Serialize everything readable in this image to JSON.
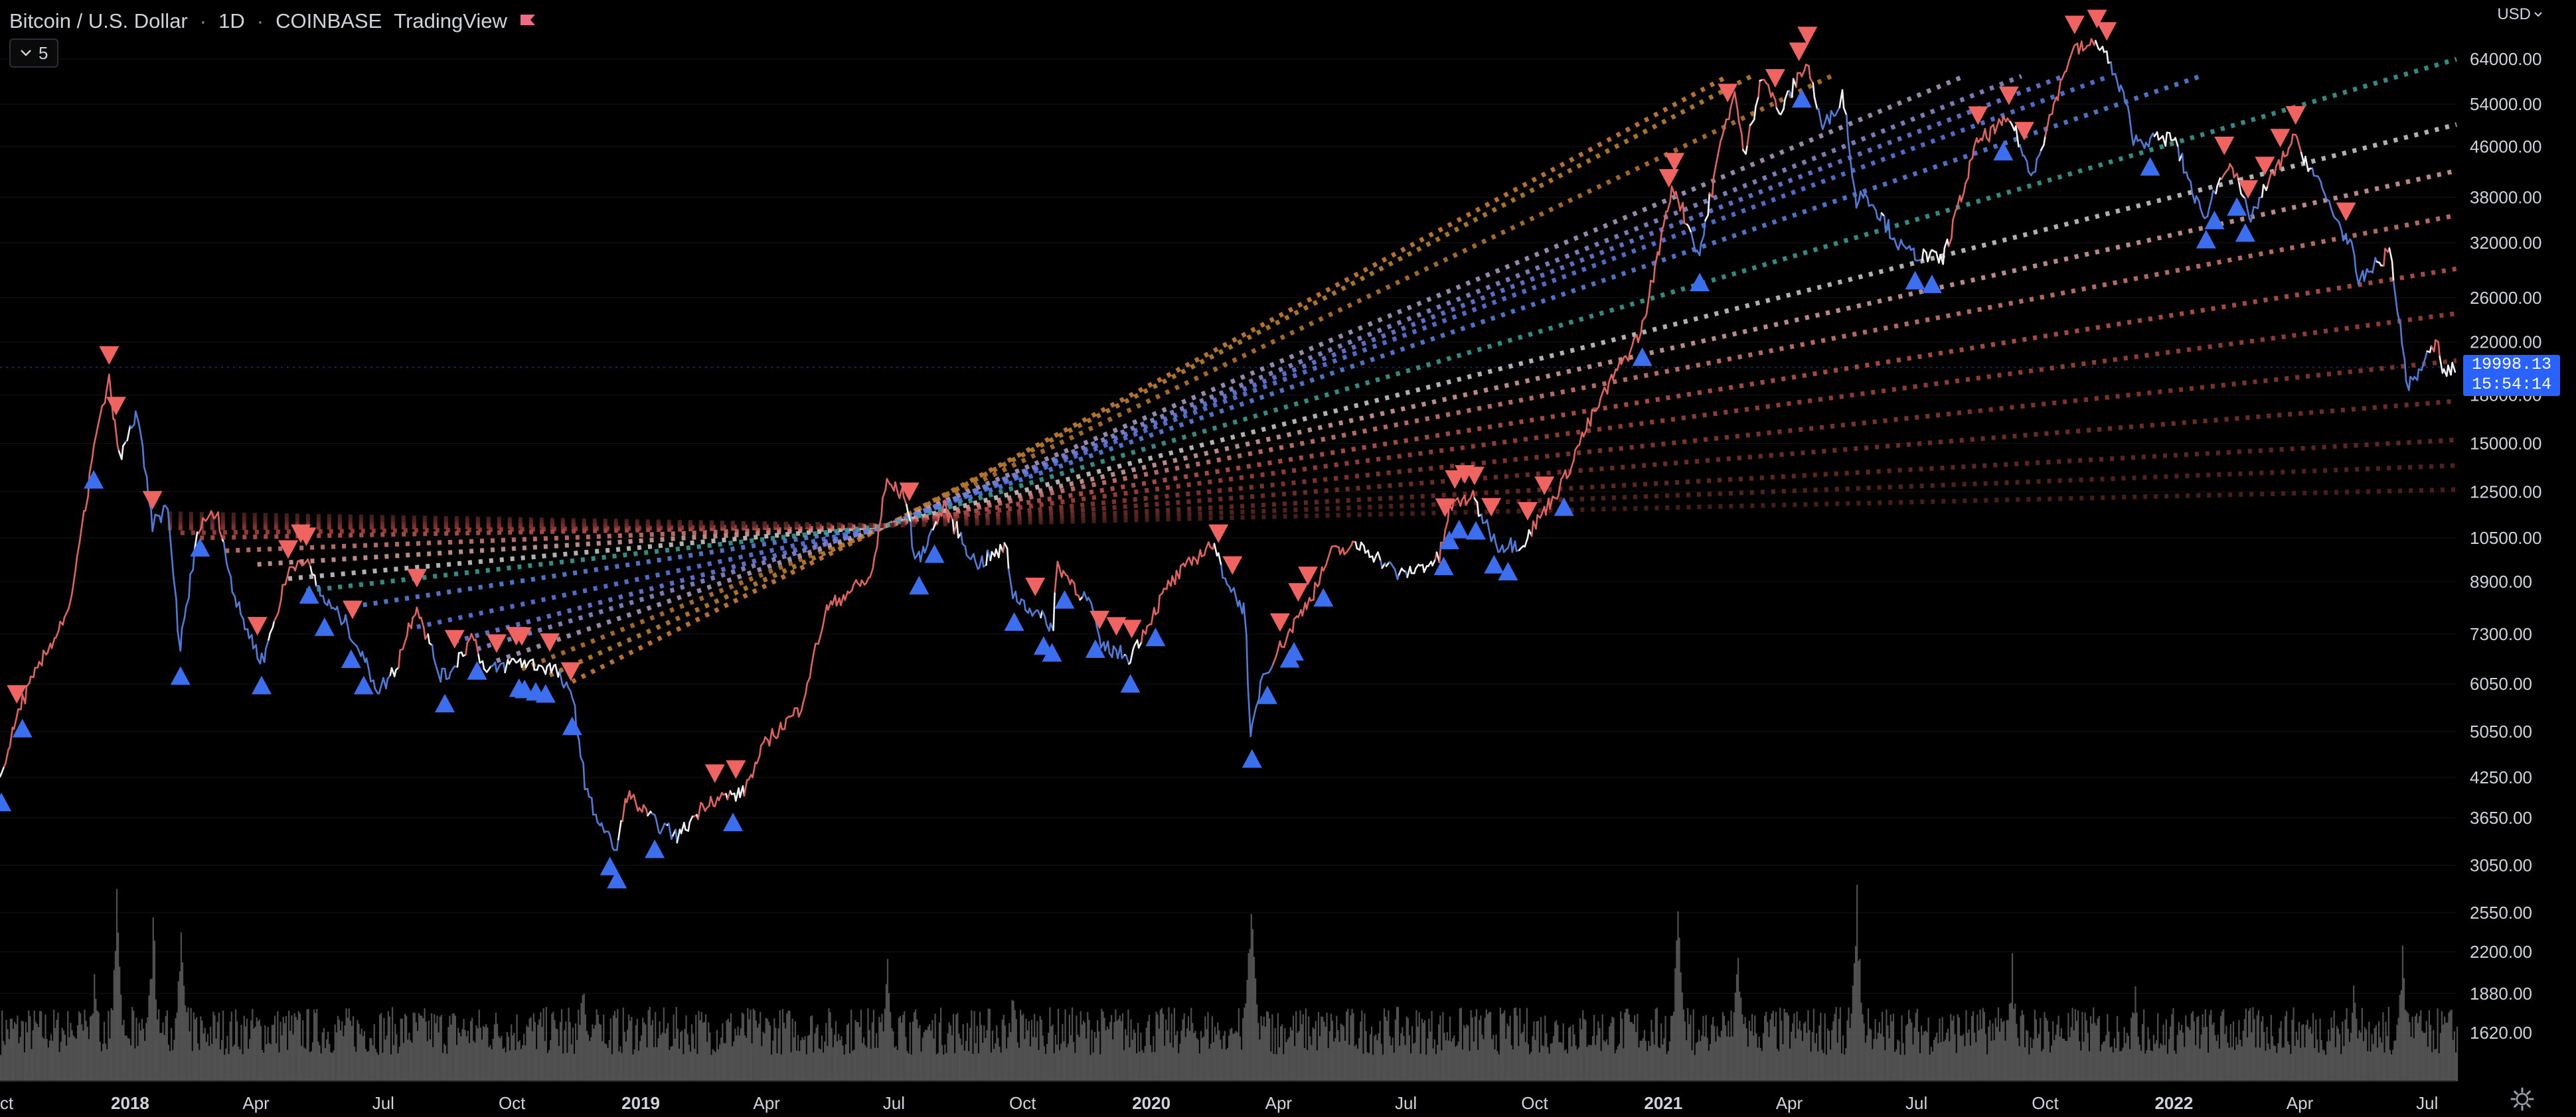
{
  "header": {
    "symbol": "Bitcoin / U.S. Dollar",
    "interval": "1D",
    "exchange": "COINBASE",
    "publisher": "TradingView",
    "flag_icon": "red-flag-icon"
  },
  "toolbar": {
    "indicator_count": "5",
    "collapse_icon": "chevron-down-icon"
  },
  "currency": {
    "label": "USD",
    "icon": "chevron-down-icon"
  },
  "last_price": {
    "value": "19998.13",
    "countdown": "15:54:14"
  },
  "settings_icon": "gear-icon",
  "colors": {
    "background": "#000000",
    "up_trend": "#e0625f",
    "down_trend": "#4f7ad8",
    "neutral": "#f2f2f2",
    "sell_marker": "#ef6461",
    "buy_marker": "#3b6ff0",
    "volume": "#6b6b6b",
    "price_tag": "#2962ff"
  },
  "chart_data": {
    "type": "line",
    "scale": "log",
    "x_axis": {
      "ticks": [
        "ct",
        "2018",
        "Apr",
        "Jul",
        "Oct",
        "2019",
        "Apr",
        "Jul",
        "Oct",
        "2020",
        "Apr",
        "Jul",
        "Oct",
        "2021",
        "Apr",
        "Jul",
        "Oct",
        "2022",
        "Apr",
        "Jul"
      ],
      "bold": [
        "2018",
        "2019",
        "2020",
        "2021",
        "2022"
      ]
    },
    "y_axis": {
      "ticks": [
        "64000.00",
        "54000.00",
        "46000.00",
        "38000.00",
        "32000.00",
        "26000.00",
        "22000.00",
        "18000.00",
        "15000.00",
        "12500.00",
        "10500.00",
        "8900.00",
        "7300.00",
        "6050.00",
        "5050.00",
        "4250.00",
        "3650.00",
        "3050.00",
        "2550.00",
        "2200.00",
        "1880.00",
        "1620.00"
      ],
      "range": [
        1350,
        80000
      ]
    },
    "x_range": [
      "2017-09-30",
      "2022-07-22"
    ],
    "price_series": [
      [
        "2017-09-30",
        4200
      ],
      [
        "2017-10-15",
        5600
      ],
      [
        "2017-11-01",
        6700
      ],
      [
        "2017-11-20",
        8200
      ],
      [
        "2017-12-07",
        15000
      ],
      [
        "2017-12-17",
        19000
      ],
      [
        "2017-12-25",
        14000
      ],
      [
        "2018-01-06",
        17000
      ],
      [
        "2018-01-17",
        11000
      ],
      [
        "2018-01-28",
        11800
      ],
      [
        "2018-02-06",
        6900
      ],
      [
        "2018-02-20",
        11200
      ],
      [
        "2018-03-05",
        11500
      ],
      [
        "2018-03-18",
        8200
      ],
      [
        "2018-04-01",
        6900
      ],
      [
        "2018-04-06",
        6600
      ],
      [
        "2018-04-25",
        9300
      ],
      [
        "2018-05-05",
        9800
      ],
      [
        "2018-05-20",
        8300
      ],
      [
        "2018-06-05",
        7600
      ],
      [
        "2018-06-28",
        5900
      ],
      [
        "2018-07-10",
        6400
      ],
      [
        "2018-07-25",
        8200
      ],
      [
        "2018-08-10",
        6300
      ],
      [
        "2018-08-15",
        6200
      ],
      [
        "2018-09-04",
        7300
      ],
      [
        "2018-09-12",
        6300
      ],
      [
        "2018-10-05",
        6600
      ],
      [
        "2018-11-01",
        6400
      ],
      [
        "2018-11-15",
        5600
      ],
      [
        "2018-11-20",
        4500
      ],
      [
        "2018-11-25",
        3900
      ],
      [
        "2018-12-15",
        3200
      ],
      [
        "2018-12-22",
        4000
      ],
      [
        "2019-01-10",
        3600
      ],
      [
        "2019-01-28",
        3400
      ],
      [
        "2019-02-18",
        3900
      ],
      [
        "2019-03-15",
        4000
      ],
      [
        "2019-04-02",
        4900
      ],
      [
        "2019-04-25",
        5500
      ],
      [
        "2019-05-14",
        8000
      ],
      [
        "2019-05-30",
        8600
      ],
      [
        "2019-06-15",
        9000
      ],
      [
        "2019-06-26",
        13000
      ],
      [
        "2019-07-10",
        12200
      ],
      [
        "2019-07-17",
        9500
      ],
      [
        "2019-08-06",
        11800
      ],
      [
        "2019-08-29",
        9500
      ],
      [
        "2019-09-20",
        10100
      ],
      [
        "2019-09-24",
        8500
      ],
      [
        "2019-10-23",
        7500
      ],
      [
        "2019-10-26",
        9500
      ],
      [
        "2019-11-20",
        8100
      ],
      [
        "2019-11-25",
        7000
      ],
      [
        "2019-12-17",
        6700
      ],
      [
        "2020-01-14",
        8800
      ],
      [
        "2020-02-13",
        10300
      ],
      [
        "2020-02-28",
        8600
      ],
      [
        "2020-03-08",
        8000
      ],
      [
        "2020-03-12",
        4900
      ],
      [
        "2020-03-20",
        6200
      ],
      [
        "2020-04-08",
        7300
      ],
      [
        "2020-04-29",
        8800
      ],
      [
        "2020-05-08",
        9900
      ],
      [
        "2020-06-01",
        10200
      ],
      [
        "2020-06-27",
        9100
      ],
      [
        "2020-07-25",
        9700
      ],
      [
        "2020-08-02",
        11800
      ],
      [
        "2020-08-17",
        12300
      ],
      [
        "2020-09-05",
        10200
      ],
      [
        "2020-09-23",
        10300
      ],
      [
        "2020-10-21",
        12900
      ],
      [
        "2020-11-05",
        15500
      ],
      [
        "2020-11-25",
        19000
      ],
      [
        "2020-12-17",
        23000
      ],
      [
        "2021-01-08",
        40000
      ],
      [
        "2021-01-27",
        30500
      ],
      [
        "2021-02-10",
        45000
      ],
      [
        "2021-02-21",
        57000
      ],
      [
        "2021-02-28",
        44000
      ],
      [
        "2021-03-13",
        61000
      ],
      [
        "2021-03-25",
        52000
      ],
      [
        "2021-04-14",
        63500
      ],
      [
        "2021-04-25",
        49000
      ],
      [
        "2021-05-10",
        56000
      ],
      [
        "2021-05-19",
        37000
      ],
      [
        "2021-05-25",
        39000
      ],
      [
        "2021-06-22",
        31000
      ],
      [
        "2021-07-20",
        30000
      ],
      [
        "2021-08-14",
        47000
      ],
      [
        "2021-09-07",
        51000
      ],
      [
        "2021-09-21",
        41000
      ],
      [
        "2021-10-20",
        66000
      ],
      [
        "2021-11-10",
        68000
      ],
      [
        "2021-11-28",
        54000
      ],
      [
        "2021-12-04",
        47000
      ],
      [
        "2022-01-01",
        47500
      ],
      [
        "2022-01-22",
        35000
      ],
      [
        "2022-02-10",
        44000
      ],
      [
        "2022-02-24",
        35000
      ],
      [
        "2022-03-28",
        47500
      ],
      [
        "2022-04-15",
        40000
      ],
      [
        "2022-05-09",
        31000
      ],
      [
        "2022-05-12",
        27500
      ],
      [
        "2022-06-05",
        31000
      ],
      [
        "2022-06-13",
        22000
      ],
      [
        "2022-06-18",
        18500
      ],
      [
        "2022-07-08",
        22000
      ],
      [
        "2022-07-13",
        19500
      ],
      [
        "2022-07-22",
        19998
      ]
    ],
    "sell_markers": [
      "2017-10-12",
      "2017-12-17",
      "2017-12-22",
      "2018-01-17",
      "2018-04-02",
      "2018-04-24",
      "2018-05-03",
      "2018-05-07",
      "2018-06-09",
      "2018-07-25",
      "2018-08-21",
      "2018-09-20",
      "2018-10-04",
      "2018-10-08",
      "2018-10-28",
      "2018-11-12",
      "2019-02-23",
      "2019-03-10",
      "2019-07-12",
      "2019-10-10",
      "2019-11-25",
      "2019-12-07",
      "2019-12-18",
      "2020-02-18",
      "2020-02-28",
      "2020-04-02",
      "2020-04-15",
      "2020-04-22",
      "2020-07-29",
      "2020-08-05",
      "2020-08-12",
      "2020-08-19",
      "2020-08-31",
      "2020-09-26",
      "2020-10-08",
      "2021-01-05",
      "2021-01-09",
      "2021-02-16",
      "2021-03-22",
      "2021-04-08",
      "2021-04-14",
      "2021-08-14",
      "2021-09-05",
      "2021-09-16",
      "2021-10-22",
      "2021-11-07",
      "2021-11-14",
      "2022-02-06",
      "2022-02-23",
      "2022-03-07",
      "2022-03-18",
      "2022-03-29",
      "2022-05-04"
    ],
    "buy_markers": [
      "2017-10-01",
      "2017-10-16",
      "2017-12-06",
      "2018-02-06",
      "2018-02-20",
      "2018-04-05",
      "2018-05-09",
      "2018-05-20",
      "2018-06-08",
      "2018-06-17",
      "2018-08-14",
      "2018-09-06",
      "2018-10-06",
      "2018-10-10",
      "2018-10-18",
      "2018-10-25",
      "2018-11-13",
      "2018-12-10",
      "2018-12-15",
      "2019-01-11",
      "2019-03-08",
      "2019-07-19",
      "2019-07-30",
      "2019-09-25",
      "2019-10-16",
      "2019-10-22",
      "2019-10-31",
      "2019-11-22",
      "2019-12-17",
      "2020-01-04",
      "2020-03-13",
      "2020-03-24",
      "2020-04-09",
      "2020-04-12",
      "2020-05-03",
      "2020-07-28",
      "2020-08-01",
      "2020-08-08",
      "2020-08-20",
      "2020-09-02",
      "2020-09-12",
      "2020-10-22",
      "2020-12-17",
      "2021-01-27",
      "2021-04-10",
      "2021-06-30",
      "2021-07-12",
      "2021-09-01",
      "2021-12-15",
      "2022-01-24",
      "2022-01-30",
      "2022-02-15",
      "2022-02-21"
    ],
    "fan_lines": [
      {
        "anchor": [
          "2018-11-13",
          6100
        ],
        "pivot": [
          "2019-06-26",
          11000
        ],
        "end": [
          "2021-02-16",
          60000
        ],
        "color": "#d9823a"
      },
      {
        "anchor": [
          "2018-10-28",
          6250
        ],
        "pivot": [
          "2019-06-26",
          11000
        ],
        "end": [
          "2021-03-05",
          60000
        ],
        "color": "#c6892e"
      },
      {
        "anchor": [
          "2018-10-08",
          6400
        ],
        "pivot": [
          "2019-06-26",
          11000
        ],
        "end": [
          "2021-05-01",
          60000
        ],
        "color": "#c07a2f"
      },
      {
        "anchor": [
          "2018-09-20",
          6600
        ],
        "pivot": [
          "2019-06-26",
          11000
        ],
        "end": [
          "2021-08-04",
          60000
        ],
        "color": "#b2a0c8"
      },
      {
        "anchor": [
          "2018-09-06",
          6900
        ],
        "pivot": [
          "2019-06-26",
          11000
        ],
        "end": [
          "2021-09-14",
          60000
        ],
        "color": "#8f8fd8"
      },
      {
        "anchor": [
          "2018-08-21",
          7100
        ],
        "pivot": [
          "2019-06-26",
          11000
        ],
        "end": [
          "2021-10-14",
          60000
        ],
        "color": "#6f7fe6"
      },
      {
        "anchor": [
          "2018-07-25",
          7500
        ],
        "pivot": [
          "2019-06-26",
          11000
        ],
        "end": [
          "2021-11-16",
          60000
        ],
        "color": "#5d7bea"
      },
      {
        "anchor": [
          "2018-06-09",
          8100
        ],
        "pivot": [
          "2019-06-26",
          11000
        ],
        "end": [
          "2022-01-20",
          60000
        ],
        "color": "#5a86e6"
      },
      {
        "anchor": [
          "2018-05-07",
          8600
        ],
        "pivot": [
          "2019-06-26",
          11000
        ],
        "end": [
          "2022-07-22",
          64000
        ],
        "color": "#3aa39a"
      },
      {
        "anchor": [
          "2018-04-24",
          9000
        ],
        "pivot": [
          "2019-06-26",
          11000
        ],
        "end": [
          "2022-07-22",
          50000
        ],
        "color": "#cfcfcf"
      },
      {
        "anchor": [
          "2018-04-02",
          9500
        ],
        "pivot": [
          "2019-06-26",
          11000
        ],
        "end": [
          "2022-07-22",
          42000
        ],
        "color": "#d9a0a0"
      },
      {
        "anchor": [
          "2018-03-10",
          10000
        ],
        "pivot": [
          "2019-06-26",
          11000
        ],
        "end": [
          "2022-07-22",
          35500
        ],
        "color": "#d47a72"
      },
      {
        "anchor": [
          "2018-02-20",
          10500
        ],
        "pivot": [
          "2019-06-26",
          11000
        ],
        "end": [
          "2022-07-22",
          29000
        ],
        "color": "#c0554f"
      },
      {
        "anchor": [
          "2018-02-06",
          10700
        ],
        "pivot": [
          "2019-06-26",
          11000
        ],
        "end": [
          "2022-07-22",
          24500
        ],
        "color": "#a8443e"
      },
      {
        "anchor": [
          "2018-01-28",
          10900
        ],
        "pivot": [
          "2019-06-26",
          11000
        ],
        "end": [
          "2022-07-22",
          20500
        ],
        "color": "#933a35"
      },
      {
        "anchor": [
          "2018-01-28",
          11000
        ],
        "pivot": [
          "2019-06-26",
          11000
        ],
        "end": [
          "2022-07-22",
          17600
        ],
        "color": "#7f332f"
      },
      {
        "anchor": [
          "2018-01-28",
          11100
        ],
        "pivot": [
          "2019-06-26",
          11000
        ],
        "end": [
          "2022-07-22",
          15200
        ],
        "color": "#6e2c29"
      },
      {
        "anchor": [
          "2018-01-28",
          11300
        ],
        "pivot": [
          "2019-06-26",
          11000
        ],
        "end": [
          "2022-07-22",
          13800
        ],
        "color": "#5f2724"
      },
      {
        "anchor": [
          "2018-01-28",
          11500
        ],
        "pivot": [
          "2019-06-26",
          11000
        ],
        "end": [
          "2022-07-22",
          12600
        ],
        "color": "#552320"
      }
    ],
    "volume_spikes": [
      [
        "2017-12-06",
        0.55
      ],
      [
        "2017-12-22",
        0.9
      ],
      [
        "2018-01-17",
        0.85
      ],
      [
        "2018-02-06",
        0.8
      ],
      [
        "2018-11-20",
        0.55
      ],
      [
        "2019-06-26",
        0.6
      ],
      [
        "2019-09-24",
        0.5
      ],
      [
        "2020-03-12",
        1.0
      ],
      [
        "2021-01-11",
        0.9
      ],
      [
        "2021-02-23",
        0.7
      ],
      [
        "2021-05-19",
        0.95
      ],
      [
        "2021-09-07",
        0.6
      ],
      [
        "2021-12-04",
        0.45
      ],
      [
        "2022-05-09",
        0.5
      ],
      [
        "2022-06-13",
        0.7
      ]
    ]
  }
}
